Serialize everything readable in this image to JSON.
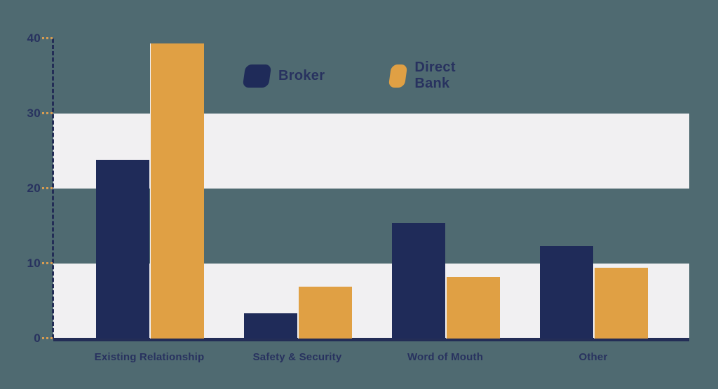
{
  "page": {
    "background_color": "#4F6A71"
  },
  "chart_data": {
    "type": "bar",
    "title": "",
    "xlabel": "",
    "ylabel": "",
    "categories": [
      "Existing Relationship",
      "Safety & Security",
      "Word of Mouth",
      "Other"
    ],
    "series": [
      {
        "name": "Broker",
        "color": "#1F2B59",
        "values": [
          23.8,
          3.4,
          15.4,
          12.3
        ]
      },
      {
        "name": "Direct Bank",
        "color": "#E0A044",
        "values": [
          39.3,
          6.9,
          8.2,
          9.4
        ]
      }
    ],
    "yticks": [
      0,
      10,
      20,
      30,
      40
    ],
    "ylim": [
      0,
      40
    ],
    "legend_position": "top-center",
    "grid": "alternating horizontal stripes",
    "stripe_bands": [
      [
        0,
        10
      ],
      [
        20,
        30
      ]
    ],
    "stripe_color": "#F1F0F2",
    "axis_color": "#232D56",
    "tick_dash_color": "#D89C51",
    "text_color": "#28325F"
  }
}
